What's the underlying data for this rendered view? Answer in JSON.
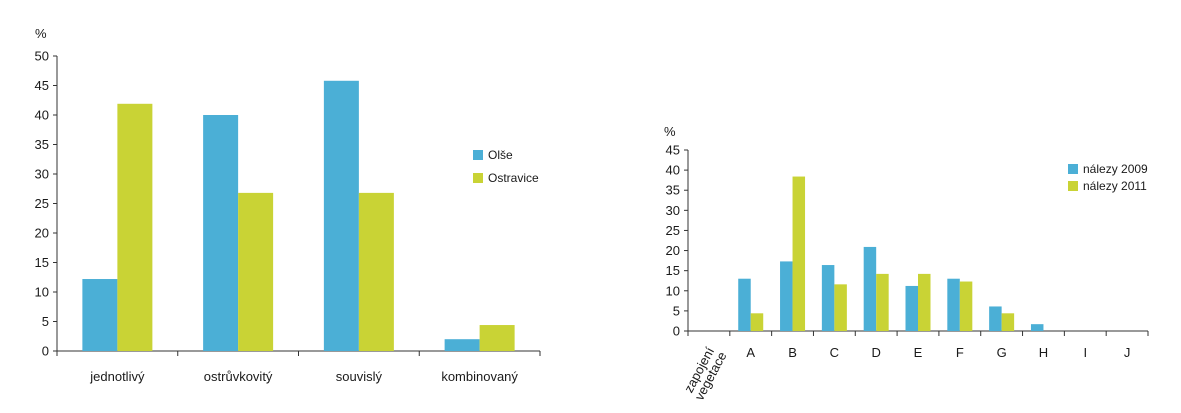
{
  "chart_data": [
    {
      "type": "bar",
      "ylabel": "%",
      "ylim": [
        0,
        50
      ],
      "yticks": [
        0,
        5,
        10,
        15,
        20,
        25,
        30,
        35,
        40,
        45,
        50
      ],
      "categories": [
        "jednotlivý",
        "ostrůvkovitý",
        "souvislý",
        "kombinovaný"
      ],
      "series": [
        {
          "name": "Olše",
          "color": "#4bafd6",
          "values": [
            12.2,
            40.0,
            45.8,
            2.0
          ]
        },
        {
          "name": "Ostravice",
          "color": "#c9d335",
          "values": [
            41.9,
            26.8,
            26.8,
            4.4
          ]
        }
      ],
      "legend": "right",
      "grid": false
    },
    {
      "type": "bar",
      "ylabel": "%",
      "ylim": [
        0,
        45
      ],
      "yticks": [
        0,
        5,
        10,
        15,
        20,
        25,
        30,
        35,
        40,
        45
      ],
      "xlabel_lines": [
        "zapojení",
        "vegetace"
      ],
      "categories": [
        "A",
        "B",
        "C",
        "D",
        "E",
        "F",
        "G",
        "H",
        "I",
        "J"
      ],
      "series": [
        {
          "name": "nálezy 2009",
          "color": "#4bafd6",
          "values": [
            13.0,
            17.3,
            16.4,
            20.9,
            11.2,
            13.0,
            6.1,
            1.7,
            0,
            0
          ]
        },
        {
          "name": "nálezy 2011",
          "color": "#c9d335",
          "values": [
            4.4,
            38.4,
            11.6,
            14.2,
            14.2,
            12.3,
            4.4,
            0,
            0,
            0
          ]
        }
      ],
      "legend": "top-right",
      "grid": false
    }
  ]
}
